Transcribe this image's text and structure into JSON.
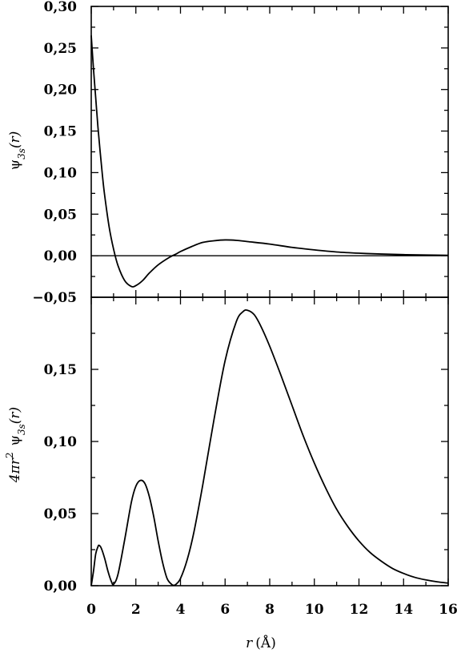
{
  "chart_data": [
    {
      "type": "line",
      "panel": "top",
      "ylabel": "ψ_3s(r)",
      "ylabel_parts": {
        "symbol": "ψ",
        "subscript": "3s",
        "arg": "(r)"
      },
      "xlim": [
        0,
        16
      ],
      "ylim": [
        -0.05,
        0.3
      ],
      "yticks": [
        -0.05,
        0.0,
        0.05,
        0.1,
        0.15,
        0.2,
        0.25,
        0.3
      ],
      "ytick_labels": [
        "−0,05",
        "0,00",
        "0,05",
        "0,10",
        "0,15",
        "0,20",
        "0,25",
        "0,30"
      ],
      "zero_line": true,
      "grid": false,
      "series": [
        {
          "x": [
            0,
            0.1,
            0.2,
            0.3,
            0.4,
            0.5,
            0.6,
            0.8,
            1.0,
            1.2,
            1.5,
            1.8,
            2.0,
            2.3,
            2.6,
            3.0,
            3.5,
            3.8,
            4.0,
            4.5,
            5.0,
            5.5,
            6.0,
            6.5,
            7.0,
            8.0,
            9.0,
            10.0,
            11.0,
            12.0,
            13.0,
            14.0,
            15.0,
            16.0
          ],
          "y": [
            0.265,
            0.225,
            0.19,
            0.155,
            0.125,
            0.097,
            0.073,
            0.035,
            0.008,
            -0.012,
            -0.03,
            -0.037,
            -0.036,
            -0.03,
            -0.021,
            -0.011,
            -0.002,
            0.002,
            0.005,
            0.011,
            0.016,
            0.018,
            0.019,
            0.0185,
            0.017,
            0.014,
            0.01,
            0.007,
            0.0045,
            0.003,
            0.002,
            0.0013,
            0.0008,
            0.0005
          ]
        }
      ]
    },
    {
      "type": "line",
      "panel": "bottom",
      "ylabel": "4πr² ψ_3s(r)",
      "ylabel_parts": {
        "prefix": "4πr",
        "sup": "2",
        "symbol": "ψ",
        "subscript": "3s",
        "arg": "(r)"
      },
      "xlabel": "r (Å)",
      "xlabel_parts": {
        "var": "r",
        "unit": "(Å)"
      },
      "xlim": [
        0,
        16
      ],
      "ylim": [
        0,
        0.2
      ],
      "xticks": [
        0,
        2,
        4,
        6,
        8,
        10,
        12,
        14,
        16
      ],
      "xtick_labels": [
        "0",
        "2",
        "4",
        "6",
        "8",
        "10",
        "12",
        "14",
        "16"
      ],
      "yticks": [
        0.0,
        0.05,
        0.1,
        0.15
      ],
      "ytick_labels": [
        "0,00",
        "0,05",
        "0,10",
        "0,15"
      ],
      "grid": false,
      "series": [
        {
          "x": [
            0,
            0.1,
            0.2,
            0.3,
            0.35,
            0.45,
            0.6,
            0.75,
            0.9,
            1.0,
            1.2,
            1.5,
            1.8,
            2.0,
            2.2,
            2.4,
            2.6,
            2.8,
            3.0,
            3.2,
            3.4,
            3.6,
            3.7,
            3.8,
            4.0,
            4.3,
            4.6,
            5.0,
            5.5,
            6.0,
            6.5,
            6.8,
            7.0,
            7.3,
            7.6,
            8.0,
            8.5,
            9.0,
            9.5,
            10.0,
            10.5,
            11.0,
            11.5,
            12.0,
            12.5,
            13.0,
            13.5,
            14.0,
            14.5,
            15.0,
            15.5,
            16.0
          ],
          "y": [
            0,
            0.01,
            0.022,
            0.027,
            0.028,
            0.026,
            0.019,
            0.01,
            0.003,
            0.001,
            0.008,
            0.032,
            0.058,
            0.069,
            0.073,
            0.071,
            0.062,
            0.048,
            0.031,
            0.016,
            0.005,
            0.001,
            0.0003,
            0.001,
            0.005,
            0.018,
            0.037,
            0.07,
            0.115,
            0.156,
            0.183,
            0.19,
            0.191,
            0.188,
            0.18,
            0.166,
            0.146,
            0.125,
            0.104,
            0.085,
            0.068,
            0.053,
            0.041,
            0.031,
            0.023,
            0.017,
            0.012,
            0.0085,
            0.0058,
            0.004,
            0.0027,
            0.0018
          ]
        }
      ]
    }
  ]
}
